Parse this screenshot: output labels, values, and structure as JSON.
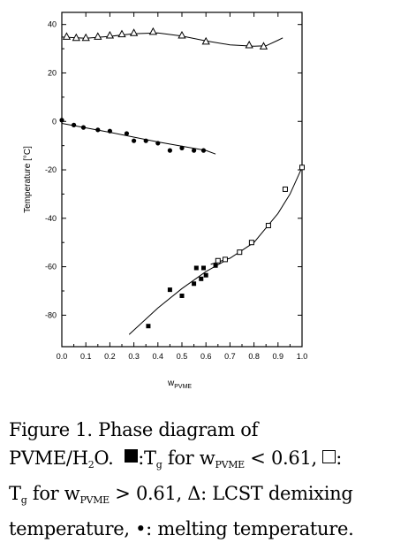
{
  "chart_data": {
    "type": "scatter",
    "title": "",
    "xlabel_main": "w",
    "xlabel_sub": "PVME",
    "ylabel": "Temperature [°C]",
    "xlim": [
      0.0,
      1.0
    ],
    "ylim": [
      -93,
      45
    ],
    "x_ticks": [
      "0.0",
      "0.1",
      "0.2",
      "0.3",
      "0.4",
      "0.5",
      "0.6",
      "0.7",
      "0.8",
      "0.9",
      "1.0"
    ],
    "y_ticks": [
      "40",
      "20",
      "0",
      "-20",
      "-40",
      "-60",
      "-80"
    ],
    "series": [
      {
        "marker": "filled-square",
        "points": [
          [
            0.36,
            -84.5
          ],
          [
            0.45,
            -69.5
          ],
          [
            0.5,
            -72
          ],
          [
            0.55,
            -67
          ],
          [
            0.56,
            -60.5
          ],
          [
            0.58,
            -65
          ],
          [
            0.59,
            -60.5
          ],
          [
            0.6,
            -63.5
          ],
          [
            0.64,
            -59.5
          ]
        ]
      },
      {
        "marker": "open-square",
        "points": [
          [
            0.65,
            -57.5
          ],
          [
            0.68,
            -57
          ],
          [
            0.74,
            -54
          ],
          [
            0.79,
            -50
          ],
          [
            0.86,
            -43
          ],
          [
            0.93,
            -28
          ],
          [
            1.0,
            -19
          ]
        ]
      },
      {
        "marker": "open-triangle",
        "points": [
          [
            0.02,
            35
          ],
          [
            0.06,
            34.5
          ],
          [
            0.1,
            34.5
          ],
          [
            0.15,
            35
          ],
          [
            0.2,
            35.5
          ],
          [
            0.25,
            36
          ],
          [
            0.3,
            36.5
          ],
          [
            0.38,
            37
          ],
          [
            0.5,
            35.5
          ],
          [
            0.6,
            33
          ],
          [
            0.78,
            31.5
          ],
          [
            0.84,
            31
          ]
        ]
      },
      {
        "marker": "filled-circle",
        "points": [
          [
            0.0,
            0.5
          ],
          [
            0.05,
            -1.5
          ],
          [
            0.09,
            -2.5
          ],
          [
            0.15,
            -3.5
          ],
          [
            0.2,
            -4
          ],
          [
            0.27,
            -5
          ],
          [
            0.3,
            -8
          ],
          [
            0.35,
            -8
          ],
          [
            0.4,
            -9
          ],
          [
            0.45,
            -12
          ],
          [
            0.5,
            -11
          ],
          [
            0.55,
            -12
          ],
          [
            0.59,
            -12
          ]
        ]
      }
    ],
    "fit_curves": [
      [
        [
          0.0,
          34.8
        ],
        [
          0.1,
          34.3
        ],
        [
          0.2,
          35.1
        ],
        [
          0.3,
          36.2
        ],
        [
          0.4,
          36.5
        ],
        [
          0.5,
          35.2
        ],
        [
          0.6,
          33.2
        ],
        [
          0.7,
          31.6
        ],
        [
          0.8,
          31.0
        ],
        [
          0.85,
          31.2
        ],
        [
          0.9,
          33.5
        ],
        [
          0.92,
          34.5
        ]
      ],
      [
        [
          0.0,
          -0.8
        ],
        [
          0.2,
          -4.5
        ],
        [
          0.4,
          -8.5
        ],
        [
          0.6,
          -12.0
        ],
        [
          0.64,
          -13.5
        ]
      ],
      [
        [
          0.28,
          -88
        ],
        [
          0.4,
          -77
        ],
        [
          0.5,
          -69
        ],
        [
          0.6,
          -62
        ],
        [
          0.68,
          -57.5
        ]
      ],
      [
        [
          0.62,
          -59
        ],
        [
          0.7,
          -56.5
        ],
        [
          0.8,
          -50
        ],
        [
          0.9,
          -38
        ],
        [
          0.95,
          -30
        ],
        [
          1.0,
          -19
        ]
      ]
    ]
  },
  "caption": {
    "line1": "Figure 1. Phase diagram of",
    "line2_a": "PVME/H",
    "line2_sub": "2",
    "line2_b": "O.",
    "line2_c": ":T",
    "line2_d_sub": "g",
    "line2_e": " for w",
    "line2_f_sub": "PVME",
    "line2_g": " < 0.61,",
    "line2_h": ":",
    "line3_a": "T",
    "line3_sub": "g",
    "line3_b": " for w",
    "line3_c_sub": "PVME",
    "line3_d": " > 0.61, Δ: LCST demixing",
    "line4": "temperature, •: melting temperature."
  }
}
